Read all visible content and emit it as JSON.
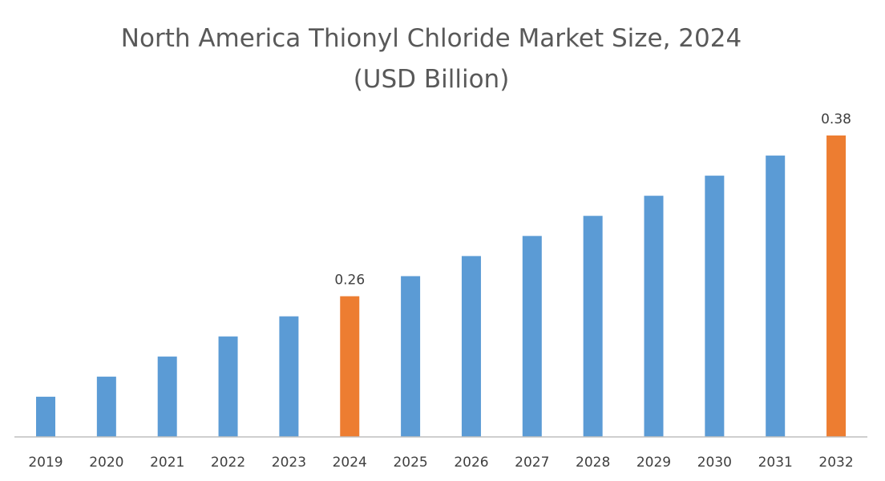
{
  "chart_data": {
    "type": "bar",
    "title": "North America Thionyl Chloride Market Size, 2024",
    "subtitle": "(USD Billion)",
    "xlabel": "",
    "ylabel": "",
    "categories": [
      "2019",
      "2020",
      "2021",
      "2022",
      "2023",
      "2024",
      "2025",
      "2026",
      "2027",
      "2028",
      "2029",
      "2030",
      "2031",
      "2032"
    ],
    "values": [
      0.185,
      0.2,
      0.215,
      0.23,
      0.245,
      0.26,
      0.275,
      0.29,
      0.305,
      0.32,
      0.335,
      0.35,
      0.365,
      0.38
    ],
    "data_labels": {
      "2024": "0.26",
      "2032": "0.38"
    },
    "highlight": [
      "2024",
      "2032"
    ],
    "ylim": [
      0.155,
      0.38
    ],
    "y_axis_visible": false,
    "grid": false,
    "legend": "none",
    "colors": {
      "default": "#5B9BD5",
      "highlight": "#ED7D31",
      "axis": "#BFBFBF"
    }
  }
}
